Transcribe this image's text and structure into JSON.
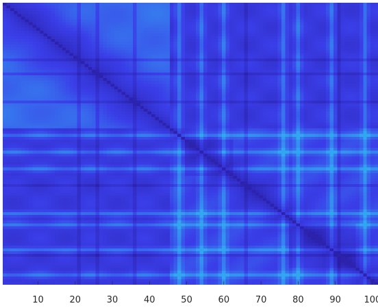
{
  "chart_data": {
    "type": "heatmap",
    "title": "",
    "xlabel": "",
    "ylabel": "",
    "size": 101,
    "xlim": [
      0.5,
      101.5
    ],
    "xticks": [
      10,
      20,
      30,
      40,
      50,
      60,
      70,
      80,
      90,
      100
    ],
    "xtick_labels": [
      "10",
      "20",
      "30",
      "40",
      "50",
      "60",
      "70",
      "80",
      "90",
      "100"
    ],
    "y_ticks_shown": false,
    "colormap": {
      "low": "#2a1fa8",
      "mid": "#3a3ee8",
      "high": "#33a6f2"
    },
    "value_range": [
      0,
      1
    ],
    "diagonal_value": 0.05,
    "smooth_region_end": 45,
    "background_level": 0.5,
    "background_level_segment2": 0.42,
    "bright_lines": [
      48,
      54,
      60,
      76,
      80,
      89,
      98
    ],
    "dark_lines": [
      21,
      26,
      36,
      66,
      91
    ],
    "dark_blocks": [
      {
        "rows": [
          50,
          62
        ],
        "cols": [
          50,
          62
        ]
      },
      {
        "rows": [
          80,
          95
        ],
        "cols": [
          78,
          95
        ]
      }
    ]
  }
}
